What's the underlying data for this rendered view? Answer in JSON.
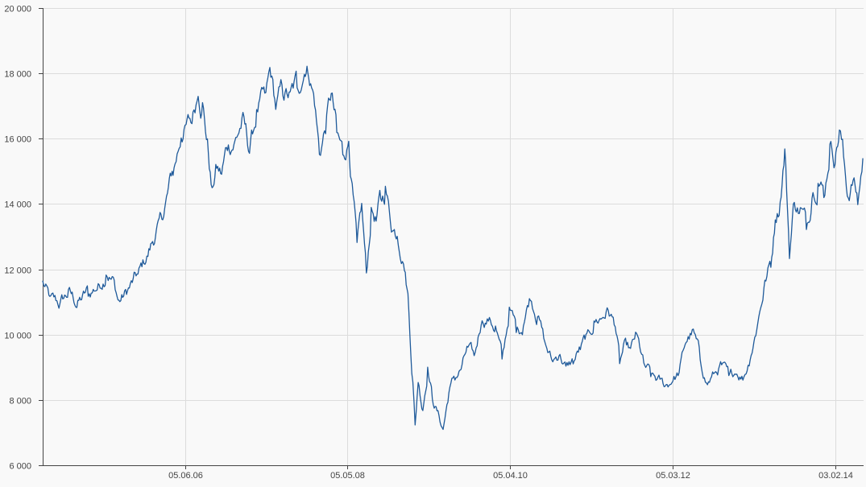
{
  "colors": {
    "background": "#f9f9f9",
    "grid": "#dcdcdc",
    "axis": "#444444",
    "line": "#1f5a9a",
    "text": "#444444"
  },
  "chart_data": {
    "type": "line",
    "title": "",
    "xlabel": "",
    "ylabel": "",
    "grid": true,
    "legend": "none",
    "ylim": [
      6000,
      20000
    ],
    "y_ticks": [
      6000,
      8000,
      10000,
      12000,
      14000,
      16000,
      18000,
      20000
    ],
    "y_tick_labels": [
      "6 000",
      "8 000",
      "10 000",
      "12 000",
      "14 000",
      "16 000",
      "18 000",
      "20 000"
    ],
    "xlim": [
      "2004-10-01",
      "2014-06-04"
    ],
    "x_ticks": [
      "2006-06-05",
      "2008-05-05",
      "2010-04-05",
      "2012-03-05",
      "2014-02-03"
    ],
    "x_tick_labels": [
      "05.06.06",
      "05.05.08",
      "05.04.10",
      "05.03.12",
      "03.02.14"
    ],
    "series": [
      {
        "name": "",
        "points": [
          [
            "2004-10-01",
            11600
          ],
          [
            "2004-11-01",
            11050
          ],
          [
            "2004-12-10",
            10900
          ],
          [
            "2005-01-20",
            11250
          ],
          [
            "2005-03-01",
            10900
          ],
          [
            "2005-04-15",
            11300
          ],
          [
            "2005-06-01",
            11550
          ],
          [
            "2005-07-01",
            11900
          ],
          [
            "2005-08-05",
            11600
          ],
          [
            "2005-08-25",
            11000
          ],
          [
            "2005-10-01",
            11300
          ],
          [
            "2005-11-15",
            11800
          ],
          [
            "2006-01-01",
            12500
          ],
          [
            "2006-02-10",
            13300
          ],
          [
            "2006-03-10",
            13800
          ],
          [
            "2006-04-15",
            15000
          ],
          [
            "2006-05-20",
            16100
          ],
          [
            "2006-07-01",
            16500
          ],
          [
            "2006-08-01",
            17500
          ],
          [
            "2006-08-20",
            17000
          ],
          [
            "2006-09-10",
            15800
          ],
          [
            "2006-09-30",
            14300
          ],
          [
            "2006-10-20",
            15200
          ],
          [
            "2006-11-10",
            14900
          ],
          [
            "2006-12-05",
            15800
          ],
          [
            "2007-01-10",
            16000
          ],
          [
            "2007-02-10",
            16600
          ],
          [
            "2007-03-10",
            15600
          ],
          [
            "2007-04-10",
            16700
          ],
          [
            "2007-05-15",
            17200
          ],
          [
            "2007-06-10",
            18100
          ],
          [
            "2007-07-01",
            17000
          ],
          [
            "2007-08-01",
            17500
          ],
          [
            "2007-09-01",
            17300
          ],
          [
            "2007-10-01",
            17700
          ],
          [
            "2007-11-01",
            18200
          ],
          [
            "2007-11-20",
            18100
          ],
          [
            "2007-12-15",
            17200
          ],
          [
            "2008-01-05",
            15600
          ],
          [
            "2008-02-05",
            16500
          ],
          [
            "2008-02-25",
            17300
          ],
          [
            "2008-03-20",
            16200
          ],
          [
            "2008-04-15",
            15600
          ],
          [
            "2008-05-10",
            16000
          ],
          [
            "2008-05-25",
            14500
          ],
          [
            "2008-06-15",
            12700
          ],
          [
            "2008-07-05",
            13900
          ],
          [
            "2008-07-25",
            11900
          ],
          [
            "2008-08-15",
            13700
          ],
          [
            "2008-09-05",
            13500
          ],
          [
            "2008-09-25",
            14200
          ],
          [
            "2008-10-15",
            14400
          ],
          [
            "2008-11-10",
            13300
          ],
          [
            "2008-12-05",
            13100
          ],
          [
            "2009-01-01",
            12300
          ],
          [
            "2009-01-20",
            11200
          ],
          [
            "2009-02-10",
            8500
          ],
          [
            "2009-02-20",
            7200
          ],
          [
            "2009-03-05",
            8600
          ],
          [
            "2009-03-25",
            7700
          ],
          [
            "2009-04-15",
            8900
          ],
          [
            "2009-05-05",
            8100
          ],
          [
            "2009-05-25",
            7700
          ],
          [
            "2009-06-20",
            7100
          ],
          [
            "2009-07-15",
            8200
          ],
          [
            "2009-08-10",
            8700
          ],
          [
            "2009-09-10",
            9000
          ],
          [
            "2009-10-05",
            9600
          ],
          [
            "2009-11-01",
            9300
          ],
          [
            "2009-12-01",
            10400
          ],
          [
            "2010-01-01",
            10500
          ],
          [
            "2010-02-01",
            10200
          ],
          [
            "2010-03-01",
            9300
          ],
          [
            "2010-04-01",
            10700
          ],
          [
            "2010-05-01",
            10200
          ],
          [
            "2010-06-01",
            10300
          ],
          [
            "2010-07-01",
            11200
          ],
          [
            "2010-08-01",
            10600
          ],
          [
            "2010-09-01",
            9700
          ],
          [
            "2010-10-01",
            9200
          ],
          [
            "2010-11-01",
            9400
          ],
          [
            "2010-12-01",
            9000
          ],
          [
            "2011-01-01",
            9200
          ],
          [
            "2011-02-01",
            9600
          ],
          [
            "2011-03-01",
            9900
          ],
          [
            "2011-04-01",
            10300
          ],
          [
            "2011-05-01",
            10500
          ],
          [
            "2011-06-01",
            10800
          ],
          [
            "2011-07-01",
            10300
          ],
          [
            "2011-07-20",
            9200
          ],
          [
            "2011-08-10",
            9700
          ],
          [
            "2011-09-05",
            9500
          ],
          [
            "2011-10-01",
            10000
          ],
          [
            "2011-11-01",
            9100
          ],
          [
            "2011-12-01",
            8800
          ],
          [
            "2012-01-01",
            8600
          ],
          [
            "2012-02-01",
            8400
          ],
          [
            "2012-03-01",
            8600
          ],
          [
            "2012-04-01",
            8800
          ],
          [
            "2012-05-01",
            9800
          ],
          [
            "2012-06-01",
            10100
          ],
          [
            "2012-07-01",
            9300
          ],
          [
            "2012-08-01",
            8500
          ],
          [
            "2012-09-01",
            8800
          ],
          [
            "2012-10-01",
            9100
          ],
          [
            "2012-11-01",
            8700
          ],
          [
            "2012-12-01",
            8900
          ],
          [
            "2013-01-05",
            8700
          ],
          [
            "2013-02-01",
            9300
          ],
          [
            "2013-03-01",
            10200
          ],
          [
            "2013-04-01",
            11400
          ],
          [
            "2013-05-01",
            12200
          ],
          [
            "2013-05-20",
            13600
          ],
          [
            "2013-06-10",
            14000
          ],
          [
            "2013-06-30",
            15600
          ],
          [
            "2013-07-20",
            12500
          ],
          [
            "2013-08-10",
            14200
          ],
          [
            "2013-09-05",
            13800
          ],
          [
            "2013-10-01",
            13400
          ],
          [
            "2013-10-25",
            14300
          ],
          [
            "2013-11-20",
            14600
          ],
          [
            "2013-12-15",
            14300
          ],
          [
            "2014-01-10",
            15700
          ],
          [
            "2014-02-01",
            15300
          ],
          [
            "2014-02-20",
            16200
          ],
          [
            "2014-03-10",
            15500
          ],
          [
            "2014-03-30",
            14200
          ],
          [
            "2014-04-20",
            14700
          ],
          [
            "2014-05-10",
            14100
          ],
          [
            "2014-06-01",
            15400
          ]
        ]
      }
    ]
  }
}
